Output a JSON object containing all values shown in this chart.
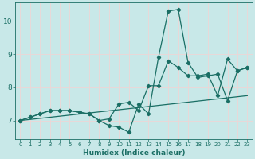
{
  "xlabel": "Humidex (Indice chaleur)",
  "ylabel": "",
  "xlim": [
    -0.5,
    23.5
  ],
  "ylim": [
    6.45,
    10.55
  ],
  "yticks": [
    7,
    8,
    9,
    10
  ],
  "xticks": [
    0,
    1,
    2,
    3,
    4,
    5,
    6,
    7,
    8,
    9,
    10,
    11,
    12,
    13,
    14,
    15,
    16,
    17,
    18,
    19,
    20,
    21,
    22,
    23
  ],
  "bg_color": "#c8e8e8",
  "grid_color": "#e8d8d8",
  "line_color": "#1a6e64",
  "series1_x": [
    0,
    1,
    2,
    3,
    4,
    5,
    6,
    7,
    8,
    9,
    10,
    11,
    12,
    13,
    14,
    15,
    16,
    17,
    18,
    19,
    20,
    21,
    22,
    23
  ],
  "series1_y": [
    7.0,
    7.1,
    7.2,
    7.3,
    7.3,
    7.3,
    7.25,
    7.2,
    7.0,
    6.85,
    6.8,
    6.65,
    7.5,
    7.2,
    8.9,
    10.3,
    10.35,
    8.75,
    8.3,
    8.35,
    8.4,
    7.6,
    8.5,
    8.6
  ],
  "series2_x": [
    0,
    1,
    2,
    3,
    4,
    5,
    6,
    7,
    8,
    9,
    10,
    11,
    12,
    13,
    14,
    15,
    16,
    17,
    18,
    19,
    20,
    21,
    22,
    23
  ],
  "series2_y": [
    7.0,
    7.1,
    7.2,
    7.3,
    7.3,
    7.3,
    7.25,
    7.2,
    7.0,
    7.05,
    7.5,
    7.55,
    7.3,
    8.05,
    8.05,
    8.8,
    8.6,
    8.35,
    8.35,
    8.4,
    7.75,
    8.85,
    8.5,
    8.6
  ],
  "series3_x": [
    0,
    23
  ],
  "series3_y": [
    7.0,
    7.75
  ]
}
